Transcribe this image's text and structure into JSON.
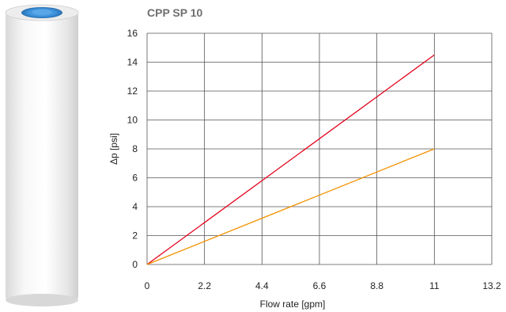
{
  "product_image": {
    "icon": "filter-cartridge-icon",
    "body_color": "#f2f2f2",
    "cap_color": "#3a8fd8"
  },
  "chart_data": {
    "type": "line",
    "title": "CPP SP 10",
    "xlabel": "Flow rate [gpm]",
    "ylabel": "Δp [psi]",
    "xlim": [
      0,
      13.2
    ],
    "ylim": [
      0,
      16
    ],
    "x_ticks": [
      "0",
      "2.2",
      "4.4",
      "6.6",
      "8.8",
      "11",
      "13.2"
    ],
    "y_ticks": [
      "0",
      "2",
      "4",
      "6",
      "8",
      "10",
      "12",
      "14",
      "16"
    ],
    "grid": true,
    "series": [
      {
        "color": "#e3001b",
        "x": [
          0,
          11
        ],
        "y": [
          0,
          14.5
        ]
      },
      {
        "color": "#f39200",
        "x": [
          0,
          11
        ],
        "y": [
          0,
          8
        ]
      }
    ]
  }
}
